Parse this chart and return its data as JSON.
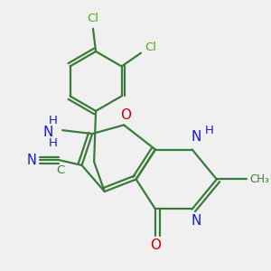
{
  "bg_color": "#f0f0f0",
  "bond_color": "#3a7a3a",
  "bond_width": 1.6,
  "atom_colors": {
    "C": "#3a7a3a",
    "N": "#1a1acd",
    "O": "#cc0000",
    "Cl": "#4aaa22",
    "H": "#3a7a3a"
  },
  "font_size": 9.5
}
